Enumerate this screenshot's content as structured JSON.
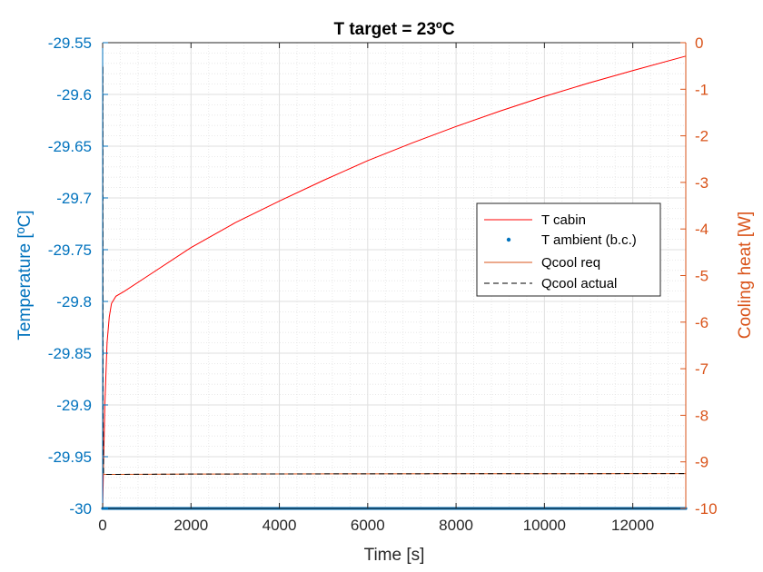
{
  "chart_data": {
    "type": "line",
    "title": "T target = 23ºC",
    "xlabel": "Time [s]",
    "ylabel_left": "Temperature [ºC]",
    "ylabel_right": "Cooling heat [W]",
    "xlim": [
      0,
      13200
    ],
    "ylim_left": [
      -30,
      -29.55
    ],
    "ylim_right": [
      -10,
      0
    ],
    "x_ticks": [
      0,
      2000,
      4000,
      6000,
      8000,
      10000,
      12000
    ],
    "y_left_ticks": [
      -30,
      -29.95,
      -29.9,
      -29.85,
      -29.8,
      -29.75,
      -29.7,
      -29.65,
      -29.6,
      -29.55
    ],
    "y_left_tick_labels": [
      "-30",
      "-29.95",
      "-29.9",
      "-29.85",
      "-29.8",
      "-29.75",
      "-29.7",
      "-29.65",
      "-29.6",
      "-29.55"
    ],
    "y_right_ticks": [
      -10,
      -9,
      -8,
      -7,
      -6,
      -5,
      -4,
      -3,
      -2,
      -1,
      0
    ],
    "y_right_tick_labels": [
      "-10",
      "-9",
      "-8",
      "-7",
      "-6",
      "-5",
      "-4",
      "-3",
      "-2",
      "-1",
      "0"
    ],
    "grid": true,
    "minor_grid": true,
    "legend_position": "right-center",
    "colors": {
      "left_axis": "#0072BD",
      "right_axis": "#D95319",
      "t_cabin": "#FF0000",
      "t_ambient": "#0072BD",
      "qcool_req": "#D95319",
      "qcool_actual": "#000000"
    },
    "series": [
      {
        "name": "T cabin",
        "axis": "left",
        "style": "solid",
        "x": [
          0,
          50,
          100,
          150,
          200,
          300,
          500,
          1000,
          2000,
          3000,
          4000,
          5000,
          6000,
          7000,
          8000,
          9000,
          10000,
          11000,
          12000,
          13200
        ],
        "y": [
          -30.0,
          -29.9,
          -29.84,
          -29.815,
          -29.802,
          -29.795,
          -29.79,
          -29.776,
          -29.748,
          -29.724,
          -29.703,
          -29.683,
          -29.664,
          -29.647,
          -29.631,
          -29.616,
          -29.602,
          -29.589,
          -29.577,
          -29.563
        ]
      },
      {
        "name": "T ambient (b.c.)",
        "axis": "left",
        "style": "dots",
        "x": [
          0,
          13200
        ],
        "y": [
          -30.0,
          -30.0
        ]
      },
      {
        "name": "Qcool req",
        "axis": "right",
        "style": "solid",
        "x": [
          0,
          5,
          10,
          20,
          50,
          100,
          1000,
          2000,
          4000,
          6000,
          8000,
          10000,
          12000,
          13200
        ],
        "y": [
          -10.0,
          -0.5,
          -8.0,
          -9.26,
          -9.27,
          -9.27,
          -9.266,
          -9.262,
          -9.259,
          -9.257,
          -9.255,
          -9.254,
          -9.253,
          -9.252
        ]
      },
      {
        "name": "Qcool actual",
        "axis": "right",
        "style": "dashed",
        "x": [
          0,
          5,
          10,
          20,
          50,
          100,
          1000,
          2000,
          4000,
          6000,
          8000,
          10000,
          12000,
          13200
        ],
        "y": [
          -10.0,
          -0.5,
          -8.0,
          -9.26,
          -9.27,
          -9.27,
          -9.266,
          -9.262,
          -9.259,
          -9.257,
          -9.255,
          -9.254,
          -9.253,
          -9.252
        ]
      }
    ]
  }
}
